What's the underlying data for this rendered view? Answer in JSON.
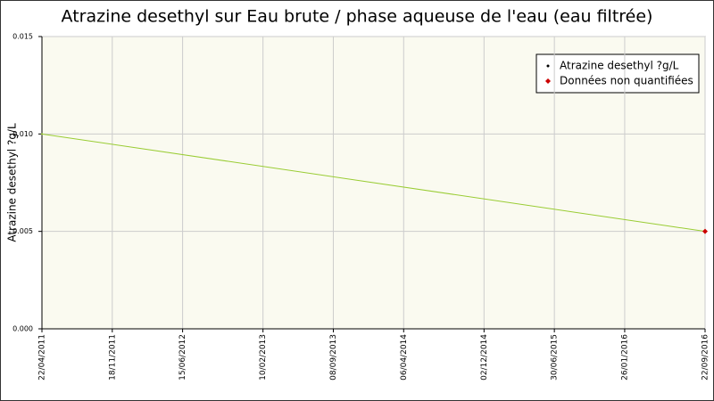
{
  "chart_data": {
    "type": "line",
    "title": "Atrazine desethyl sur Eau brute / phase aqueuse de l'eau (eau filtrée)",
    "y_label": "Atrazine desethyl ?g/L",
    "series": [
      {
        "name": "Atrazine desethyl ?g/L",
        "color": "#99cc33",
        "x": [
          "22/04/2011",
          "22/09/2016"
        ],
        "values": [
          0.01,
          0.005
        ]
      },
      {
        "name": "Données non quantifiées",
        "color": "#cc0000",
        "x": [
          "22/09/2016"
        ],
        "values": [
          0.005
        ]
      }
    ],
    "xlim": [
      "22/04/2011",
      "22/09/2016"
    ],
    "xticks": [
      "22/04/2011",
      "18/11/2011",
      "15/06/2012",
      "10/02/2013",
      "08/09/2013",
      "06/04/2014",
      "02/12/2014",
      "30/06/2015",
      "26/01/2016",
      "22/09/2016"
    ],
    "ylim": [
      0,
      0.015
    ],
    "yticks": [
      {
        "value": 0,
        "label": "0.000"
      },
      0.005,
      {
        "value": 0.01,
        "label": "0.010"
      },
      0.015
    ],
    "grid": true
  }
}
